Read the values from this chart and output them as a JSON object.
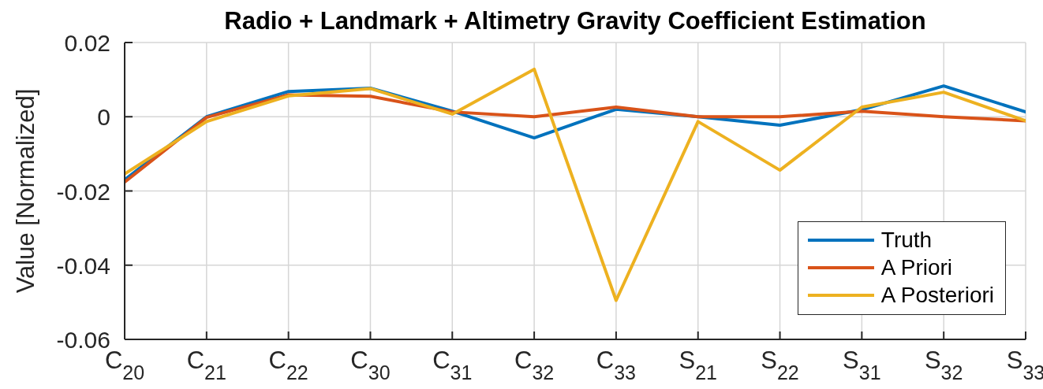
{
  "chart_data": {
    "type": "line",
    "title": "Radio + Landmark + Altimetry Gravity Coefficient Estimation",
    "ylabel": "Value [Normalized]",
    "categories": [
      "C$_{20}$",
      "C$_{21}$",
      "C$_{22}$",
      "C$_{30}$",
      "C$_{31}$",
      "C$_{32}$",
      "C$_{33}$",
      "S$_{21}$",
      "S$_{22}$",
      "S$_{31}$",
      "S$_{32}$",
      "S$_{33}$"
    ],
    "series": [
      {
        "name": "Truth",
        "color": "#0072bd",
        "values": [
          -0.017,
          0,
          0.0068,
          0.0077,
          0.0015,
          -0.0057,
          0.002,
          0,
          -0.0023,
          0.0019,
          0.0083,
          0.0013
        ]
      },
      {
        "name": "A Priori",
        "color": "#d95319",
        "values": [
          -0.0176,
          -0.0002,
          0.0059,
          0.0055,
          0.0013,
          0,
          0.0026,
          0,
          0,
          0.0015,
          0,
          -0.0011
        ]
      },
      {
        "name": "A Posteriori",
        "color": "#edb120",
        "values": [
          -0.0154,
          -0.0013,
          0.0056,
          0.0076,
          0.0007,
          0.0128,
          -0.0495,
          -0.0013,
          -0.0144,
          0.0026,
          0.0066,
          -0.0011
        ]
      }
    ],
    "ylim": [
      -0.06,
      0.02
    ],
    "yticks": [
      -0.06,
      -0.04,
      -0.02,
      0,
      0.02
    ],
    "grid": true,
    "legend": "bottom right"
  }
}
